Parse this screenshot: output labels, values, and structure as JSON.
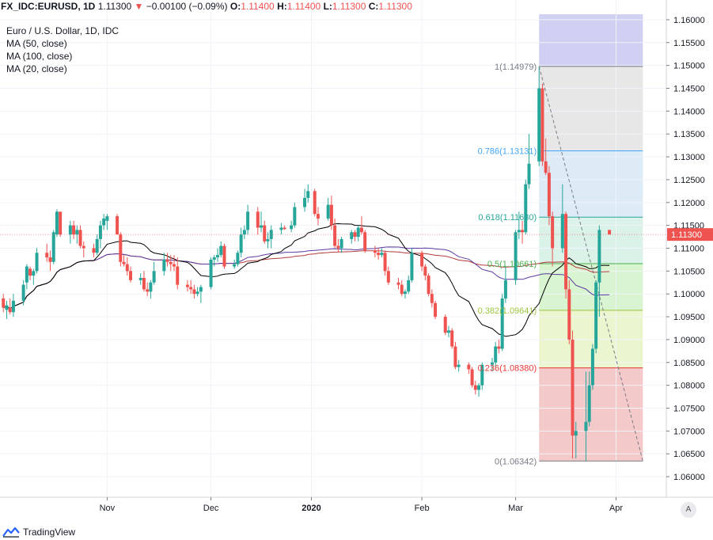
{
  "header": {
    "symbol": "FX_IDC:EURUSD, 1D",
    "last": "1.11300",
    "change_arrow": "▼",
    "change": "−0.00100 (−0.09%)",
    "o_label": "O:",
    "o": "1.11400",
    "h_label": "H:",
    "h": "1.11400",
    "l_label": "L:",
    "l": "1.11300",
    "c_label": "C:",
    "c": "1.11300"
  },
  "legend": {
    "title": "Euro / U.S. Dollar, 1D, IDC",
    "items": [
      "MA (50, close)",
      "MA (100, close)",
      "MA (20, close)"
    ]
  },
  "brand": "TradingView",
  "auto_button": "A",
  "colors": {
    "up": "#26a69a",
    "down": "#ef5350",
    "ma20": "#000000",
    "ma50": "#5b3aa0",
    "ma100": "#b23a3a",
    "price_label_bg": "#ef5350"
  },
  "chart_data": {
    "type": "candlestick",
    "title": "Euro / U.S. Dollar, 1D, IDC",
    "ylim": [
      1.0555,
      1.1612
    ],
    "y_ticks": [
      "1.16000",
      "1.15500",
      "1.15000",
      "1.14500",
      "1.14000",
      "1.13500",
      "1.13000",
      "1.12500",
      "1.12000",
      "1.11500",
      "1.11000",
      "1.10500",
      "1.10000",
      "1.09500",
      "1.09000",
      "1.08500",
      "1.08000",
      "1.07500",
      "1.07000",
      "1.06500",
      "1.06000"
    ],
    "x_ticks": [
      {
        "label": "Nov",
        "date": "2019-11-01",
        "bold": false
      },
      {
        "label": "Dec",
        "date": "2019-12-02",
        "bold": false
      },
      {
        "label": "2020",
        "date": "2020-01-01",
        "bold": true
      },
      {
        "label": "Feb",
        "date": "2020-02-03",
        "bold": false
      },
      {
        "label": "Mar",
        "date": "2020-03-02",
        "bold": false
      },
      {
        "label": "Apr",
        "date": "2020-04-01",
        "bold": false
      }
    ],
    "last_price_label": "1.11300",
    "x_start": "2019-09-30",
    "x_end": "2020-04-16",
    "fibonacci": {
      "start_date": "2020-03-09",
      "end_date": "2020-04-09",
      "levels": [
        {
          "label": "0(1.06342)",
          "price": 1.06342,
          "color": "#787b86",
          "fill": "#f2c0c0"
        },
        {
          "label": "0.236(1.08380)",
          "price": 1.0838,
          "color": "#e53935",
          "fill": "#e8f4c6"
        },
        {
          "label": "0.382(1.09641)",
          "price": 1.09641,
          "color": "#9bc53d",
          "fill": "#d2f2c9"
        },
        {
          "label": "0.5(1.10661)",
          "price": 1.10661,
          "color": "#4caf50",
          "fill": "#d4f0e4"
        },
        {
          "label": "0.618(1.11680)",
          "price": 1.1168,
          "color": "#26a69a",
          "fill": "#d6e8f5"
        },
        {
          "label": "0.786(1.13131)",
          "price": 1.13131,
          "color": "#42a5f5",
          "fill": "#e3e3e3"
        },
        {
          "label": "1(1.14979)",
          "price": 1.14979,
          "color": "#787b86",
          "fill": "#c8c8f0"
        }
      ]
    },
    "trend_line": {
      "from": {
        "date": "2020-03-09",
        "price": 1.14979
      },
      "to": {
        "date": "2020-04-09",
        "price": 1.06342
      }
    },
    "candles": [
      {
        "d": "2019-10-01",
        "o": 1.099,
        "h": 1.1,
        "l": 1.096,
        "c": 1.097
      },
      {
        "d": "2019-10-02",
        "o": 1.0965,
        "h": 1.0985,
        "l": 1.0945,
        "c": 1.0975
      },
      {
        "d": "2019-10-03",
        "o": 1.097,
        "h": 1.099,
        "l": 1.0955,
        "c": 1.096
      },
      {
        "d": "2019-10-04",
        "o": 1.096,
        "h": 1.1,
        "l": 1.095,
        "c": 1.0985
      },
      {
        "d": "2019-10-07",
        "o": 1.0985,
        "h": 1.103,
        "l": 1.0975,
        "c": 1.102
      },
      {
        "d": "2019-10-08",
        "o": 1.1025,
        "h": 1.1065,
        "l": 1.101,
        "c": 1.106
      },
      {
        "d": "2019-10-09",
        "o": 1.1055,
        "h": 1.106,
        "l": 1.103,
        "c": 1.104
      },
      {
        "d": "2019-10-10",
        "o": 1.104,
        "h": 1.1055,
        "l": 1.102,
        "c": 1.105
      },
      {
        "d": "2019-10-11",
        "o": 1.105,
        "h": 1.11,
        "l": 1.1045,
        "c": 1.109
      },
      {
        "d": "2019-10-14",
        "o": 1.109,
        "h": 1.111,
        "l": 1.107,
        "c": 1.108
      },
      {
        "d": "2019-10-15",
        "o": 1.108,
        "h": 1.1095,
        "l": 1.105,
        "c": 1.107
      },
      {
        "d": "2019-10-16",
        "o": 1.107,
        "h": 1.114,
        "l": 1.1065,
        "c": 1.1135
      },
      {
        "d": "2019-10-17",
        "o": 1.113,
        "h": 1.1185,
        "l": 1.1125,
        "c": 1.118
      },
      {
        "d": "2019-10-18",
        "o": 1.118,
        "h": 1.1175,
        "l": 1.1125,
        "c": 1.113
      },
      {
        "d": "2019-10-21",
        "o": 1.113,
        "h": 1.116,
        "l": 1.111,
        "c": 1.115
      },
      {
        "d": "2019-10-22",
        "o": 1.115,
        "h": 1.116,
        "l": 1.112,
        "c": 1.113
      },
      {
        "d": "2019-10-23",
        "o": 1.113,
        "h": 1.115,
        "l": 1.111,
        "c": 1.114
      },
      {
        "d": "2019-10-24",
        "o": 1.114,
        "h": 1.115,
        "l": 1.11,
        "c": 1.1105
      },
      {
        "d": "2019-10-25",
        "o": 1.1105,
        "h": 1.1115,
        "l": 1.108,
        "c": 1.11
      },
      {
        "d": "2019-10-28",
        "o": 1.11,
        "h": 1.111,
        "l": 1.108,
        "c": 1.109
      },
      {
        "d": "2019-10-29",
        "o": 1.109,
        "h": 1.113,
        "l": 1.1085,
        "c": 1.112
      },
      {
        "d": "2019-10-30",
        "o": 1.112,
        "h": 1.116,
        "l": 1.11,
        "c": 1.115
      },
      {
        "d": "2019-10-31",
        "o": 1.115,
        "h": 1.1175,
        "l": 1.114,
        "c": 1.1165
      },
      {
        "d": "2019-11-01",
        "o": 1.116,
        "h": 1.1175,
        "l": 1.114,
        "c": 1.117
      },
      {
        "d": "2019-11-04",
        "o": 1.117,
        "h": 1.1175,
        "l": 1.113,
        "c": 1.113
      },
      {
        "d": "2019-11-05",
        "o": 1.113,
        "h": 1.1135,
        "l": 1.106,
        "c": 1.107
      },
      {
        "d": "2019-11-06",
        "o": 1.107,
        "h": 1.1085,
        "l": 1.106,
        "c": 1.1065
      },
      {
        "d": "2019-11-07",
        "o": 1.1065,
        "h": 1.108,
        "l": 1.104,
        "c": 1.105
      },
      {
        "d": "2019-11-08",
        "o": 1.105,
        "h": 1.106,
        "l": 1.1025,
        "c": 1.103
      },
      {
        "d": "2019-11-11",
        "o": 1.103,
        "h": 1.1045,
        "l": 1.102,
        "c": 1.1035
      },
      {
        "d": "2019-11-12",
        "o": 1.1035,
        "h": 1.105,
        "l": 1.1005,
        "c": 1.101
      },
      {
        "d": "2019-11-13",
        "o": 1.101,
        "h": 1.1025,
        "l": 1.0995,
        "c": 1.1005
      },
      {
        "d": "2019-11-14",
        "o": 1.1005,
        "h": 1.103,
        "l": 1.099,
        "c": 1.1025
      },
      {
        "d": "2019-11-15",
        "o": 1.1025,
        "h": 1.107,
        "l": 1.102,
        "c": 1.105
      },
      {
        "d": "2019-11-18",
        "o": 1.105,
        "h": 1.109,
        "l": 1.104,
        "c": 1.1075
      },
      {
        "d": "2019-11-19",
        "o": 1.1075,
        "h": 1.109,
        "l": 1.106,
        "c": 1.107
      },
      {
        "d": "2019-11-20",
        "o": 1.107,
        "h": 1.1085,
        "l": 1.105,
        "c": 1.1065
      },
      {
        "d": "2019-11-21",
        "o": 1.1065,
        "h": 1.1085,
        "l": 1.105,
        "c": 1.106
      },
      {
        "d": "2019-11-22",
        "o": 1.106,
        "h": 1.108,
        "l": 1.101,
        "c": 1.102
      },
      {
        "d": "2019-11-25",
        "o": 1.102,
        "h": 1.103,
        "l": 1.1005,
        "c": 1.1015
      },
      {
        "d": "2019-11-26",
        "o": 1.1015,
        "h": 1.103,
        "l": 1.1,
        "c": 1.101
      },
      {
        "d": "2019-11-27",
        "o": 1.101,
        "h": 1.102,
        "l": 1.099,
        "c": 1.1
      },
      {
        "d": "2019-11-28",
        "o": 1.1,
        "h": 1.1015,
        "l": 1.0995,
        "c": 1.1005
      },
      {
        "d": "2019-11-29",
        "o": 1.1005,
        "h": 1.102,
        "l": 1.098,
        "c": 1.1015
      },
      {
        "d": "2019-12-02",
        "o": 1.1015,
        "h": 1.108,
        "l": 1.101,
        "c": 1.1075
      },
      {
        "d": "2019-12-03",
        "o": 1.1075,
        "h": 1.1085,
        "l": 1.106,
        "c": 1.108
      },
      {
        "d": "2019-12-04",
        "o": 1.108,
        "h": 1.11,
        "l": 1.107,
        "c": 1.1085
      },
      {
        "d": "2019-12-05",
        "o": 1.1085,
        "h": 1.1115,
        "l": 1.108,
        "c": 1.1105
      },
      {
        "d": "2019-12-06",
        "o": 1.1105,
        "h": 1.111,
        "l": 1.1055,
        "c": 1.106
      },
      {
        "d": "2019-12-09",
        "o": 1.106,
        "h": 1.1075,
        "l": 1.1055,
        "c": 1.1065
      },
      {
        "d": "2019-12-10",
        "o": 1.1065,
        "h": 1.1095,
        "l": 1.106,
        "c": 1.109
      },
      {
        "d": "2019-12-11",
        "o": 1.109,
        "h": 1.1145,
        "l": 1.108,
        "c": 1.113
      },
      {
        "d": "2019-12-12",
        "o": 1.113,
        "h": 1.115,
        "l": 1.112,
        "c": 1.114
      },
      {
        "d": "2019-12-13",
        "o": 1.114,
        "h": 1.1195,
        "l": 1.113,
        "c": 1.118
      },
      {
        "d": "2019-12-16",
        "o": 1.118,
        "h": 1.119,
        "l": 1.113,
        "c": 1.1145
      },
      {
        "d": "2019-12-17",
        "o": 1.1145,
        "h": 1.118,
        "l": 1.1135,
        "c": 1.115
      },
      {
        "d": "2019-12-18",
        "o": 1.115,
        "h": 1.116,
        "l": 1.111,
        "c": 1.1115
      },
      {
        "d": "2019-12-19",
        "o": 1.1115,
        "h": 1.1135,
        "l": 1.11,
        "c": 1.112
      },
      {
        "d": "2019-12-20",
        "o": 1.112,
        "h": 1.115,
        "l": 1.11,
        "c": 1.114
      },
      {
        "d": "2019-12-23",
        "o": 1.114,
        "h": 1.1155,
        "l": 1.113,
        "c": 1.1145
      },
      {
        "d": "2019-12-24",
        "o": 1.1145,
        "h": 1.115,
        "l": 1.114,
        "c": 1.1142
      },
      {
        "d": "2019-12-26",
        "o": 1.1142,
        "h": 1.116,
        "l": 1.1135,
        "c": 1.115
      },
      {
        "d": "2019-12-27",
        "o": 1.115,
        "h": 1.12,
        "l": 1.1145,
        "c": 1.119
      },
      {
        "d": "2019-12-30",
        "o": 1.119,
        "h": 1.123,
        "l": 1.118,
        "c": 1.121
      },
      {
        "d": "2019-12-31",
        "o": 1.121,
        "h": 1.124,
        "l": 1.12,
        "c": 1.1225
      },
      {
        "d": "2020-01-02",
        "o": 1.1225,
        "h": 1.123,
        "l": 1.117,
        "c": 1.1175
      },
      {
        "d": "2020-01-03",
        "o": 1.1175,
        "h": 1.119,
        "l": 1.115,
        "c": 1.1165
      },
      {
        "d": "2020-01-06",
        "o": 1.1165,
        "h": 1.121,
        "l": 1.116,
        "c": 1.1195
      },
      {
        "d": "2020-01-07",
        "o": 1.1195,
        "h": 1.1215,
        "l": 1.114,
        "c": 1.115
      },
      {
        "d": "2020-01-08",
        "o": 1.115,
        "h": 1.1165,
        "l": 1.11,
        "c": 1.1105
      },
      {
        "d": "2020-01-09",
        "o": 1.1105,
        "h": 1.112,
        "l": 1.109,
        "c": 1.11
      },
      {
        "d": "2020-01-10",
        "o": 1.11,
        "h": 1.1125,
        "l": 1.109,
        "c": 1.112
      },
      {
        "d": "2020-01-13",
        "o": 1.112,
        "h": 1.114,
        "l": 1.111,
        "c": 1.1135
      },
      {
        "d": "2020-01-14",
        "o": 1.1135,
        "h": 1.114,
        "l": 1.1115,
        "c": 1.1125
      },
      {
        "d": "2020-01-15",
        "o": 1.1125,
        "h": 1.115,
        "l": 1.1115,
        "c": 1.1145
      },
      {
        "d": "2020-01-16",
        "o": 1.1145,
        "h": 1.117,
        "l": 1.113,
        "c": 1.1135
      },
      {
        "d": "2020-01-17",
        "o": 1.1135,
        "h": 1.114,
        "l": 1.109,
        "c": 1.1095
      },
      {
        "d": "2020-01-20",
        "o": 1.1095,
        "h": 1.1105,
        "l": 1.108,
        "c": 1.109
      },
      {
        "d": "2020-01-21",
        "o": 1.109,
        "h": 1.11,
        "l": 1.1075,
        "c": 1.1085
      },
      {
        "d": "2020-01-22",
        "o": 1.1085,
        "h": 1.11,
        "l": 1.108,
        "c": 1.109
      },
      {
        "d": "2020-01-23",
        "o": 1.109,
        "h": 1.1095,
        "l": 1.104,
        "c": 1.105
      },
      {
        "d": "2020-01-24",
        "o": 1.105,
        "h": 1.106,
        "l": 1.102,
        "c": 1.1025
      },
      {
        "d": "2020-01-27",
        "o": 1.1025,
        "h": 1.1035,
        "l": 1.101,
        "c": 1.102
      },
      {
        "d": "2020-01-28",
        "o": 1.102,
        "h": 1.103,
        "l": 1.0995,
        "c": 1.1
      },
      {
        "d": "2020-01-29",
        "o": 1.1,
        "h": 1.101,
        "l": 1.099,
        "c": 1.1005
      },
      {
        "d": "2020-01-30",
        "o": 1.1005,
        "h": 1.104,
        "l": 1.1,
        "c": 1.103
      },
      {
        "d": "2020-01-31",
        "o": 1.103,
        "h": 1.11,
        "l": 1.1025,
        "c": 1.109
      },
      {
        "d": "2020-02-03",
        "o": 1.109,
        "h": 1.1095,
        "l": 1.105,
        "c": 1.106
      },
      {
        "d": "2020-02-04",
        "o": 1.106,
        "h": 1.1065,
        "l": 1.103,
        "c": 1.104
      },
      {
        "d": "2020-02-05",
        "o": 1.104,
        "h": 1.1045,
        "l": 1.0995,
        "c": 1.1
      },
      {
        "d": "2020-02-06",
        "o": 1.1,
        "h": 1.101,
        "l": 1.097,
        "c": 1.098
      },
      {
        "d": "2020-02-07",
        "o": 1.098,
        "h": 1.0985,
        "l": 1.0945,
        "c": 1.095
      },
      {
        "d": "2020-02-10",
        "o": 1.095,
        "h": 1.0955,
        "l": 1.091,
        "c": 1.0915
      },
      {
        "d": "2020-02-11",
        "o": 1.0915,
        "h": 1.093,
        "l": 1.0905,
        "c": 1.092
      },
      {
        "d": "2020-02-12",
        "o": 1.092,
        "h": 1.0925,
        "l": 1.088,
        "c": 1.0885
      },
      {
        "d": "2020-02-13",
        "o": 1.0885,
        "h": 1.0895,
        "l": 1.0835,
        "c": 1.084
      },
      {
        "d": "2020-02-14",
        "o": 1.084,
        "h": 1.0855,
        "l": 1.083,
        "c": 1.0845
      },
      {
        "d": "2020-02-17",
        "o": 1.0845,
        "h": 1.085,
        "l": 1.0825,
        "c": 1.0835
      },
      {
        "d": "2020-02-18",
        "o": 1.0835,
        "h": 1.084,
        "l": 1.0795,
        "c": 1.08
      },
      {
        "d": "2020-02-19",
        "o": 1.08,
        "h": 1.081,
        "l": 1.078,
        "c": 1.079
      },
      {
        "d": "2020-02-20",
        "o": 1.079,
        "h": 1.0805,
        "l": 1.0775,
        "c": 1.08
      },
      {
        "d": "2020-02-21",
        "o": 1.08,
        "h": 1.085,
        "l": 1.079,
        "c": 1.0845
      },
      {
        "d": "2020-02-24",
        "o": 1.0845,
        "h": 1.086,
        "l": 1.083,
        "c": 1.085
      },
      {
        "d": "2020-02-25",
        "o": 1.085,
        "h": 1.0895,
        "l": 1.084,
        "c": 1.0885
      },
      {
        "d": "2020-02-26",
        "o": 1.0885,
        "h": 1.09,
        "l": 1.087,
        "c": 1.088
      },
      {
        "d": "2020-02-27",
        "o": 1.088,
        "h": 1.1,
        "l": 1.0875,
        "c": 1.099
      },
      {
        "d": "2020-02-28",
        "o": 1.099,
        "h": 1.106,
        "l": 1.098,
        "c": 1.103
      },
      {
        "d": "2020-03-02",
        "o": 1.103,
        "h": 1.114,
        "l": 1.102,
        "c": 1.1135
      },
      {
        "d": "2020-03-03",
        "o": 1.1135,
        "h": 1.118,
        "l": 1.112,
        "c": 1.114
      },
      {
        "d": "2020-03-04",
        "o": 1.114,
        "h": 1.116,
        "l": 1.111,
        "c": 1.1135
      },
      {
        "d": "2020-03-05",
        "o": 1.1135,
        "h": 1.125,
        "l": 1.113,
        "c": 1.124
      },
      {
        "d": "2020-03-06",
        "o": 1.124,
        "h": 1.135,
        "l": 1.123,
        "c": 1.1285
      },
      {
        "d": "2020-03-09",
        "o": 1.129,
        "h": 1.1497,
        "l": 1.128,
        "c": 1.145
      },
      {
        "d": "2020-03-10",
        "o": 1.145,
        "h": 1.146,
        "l": 1.128,
        "c": 1.129
      },
      {
        "d": "2020-03-11",
        "o": 1.129,
        "h": 1.134,
        "l": 1.126,
        "c": 1.1265
      },
      {
        "d": "2020-03-12",
        "o": 1.1265,
        "h": 1.128,
        "l": 1.115,
        "c": 1.117
      },
      {
        "d": "2020-03-13",
        "o": 1.117,
        "h": 1.118,
        "l": 1.106,
        "c": 1.11
      },
      {
        "d": "2020-03-16",
        "o": 1.11,
        "h": 1.124,
        "l": 1.109,
        "c": 1.1175
      },
      {
        "d": "2020-03-17",
        "o": 1.1175,
        "h": 1.118,
        "l": 1.099,
        "c": 1.101
      },
      {
        "d": "2020-03-18",
        "o": 1.101,
        "h": 1.103,
        "l": 1.089,
        "c": 1.09
      },
      {
        "d": "2020-03-19",
        "o": 1.09,
        "h": 1.092,
        "l": 1.064,
        "c": 1.069
      },
      {
        "d": "2020-03-20",
        "o": 1.069,
        "h": 1.072,
        "l": 1.064,
        "c": 1.07
      },
      {
        "d": "2020-03-23",
        "o": 1.07,
        "h": 1.083,
        "l": 1.0634,
        "c": 1.072
      },
      {
        "d": "2020-03-24",
        "o": 1.072,
        "h": 1.083,
        "l": 1.071,
        "c": 1.08
      },
      {
        "d": "2020-03-25",
        "o": 1.08,
        "h": 1.089,
        "l": 1.079,
        "c": 1.088
      },
      {
        "d": "2020-03-26",
        "o": 1.088,
        "h": 1.103,
        "l": 1.087,
        "c": 1.1025
      },
      {
        "d": "2020-03-27",
        "o": 1.1025,
        "h": 1.115,
        "l": 1.095,
        "c": 1.114
      },
      {
        "d": "2020-03-30",
        "o": 1.114,
        "h": 1.114,
        "l": 1.113,
        "c": 1.113
      }
    ]
  }
}
